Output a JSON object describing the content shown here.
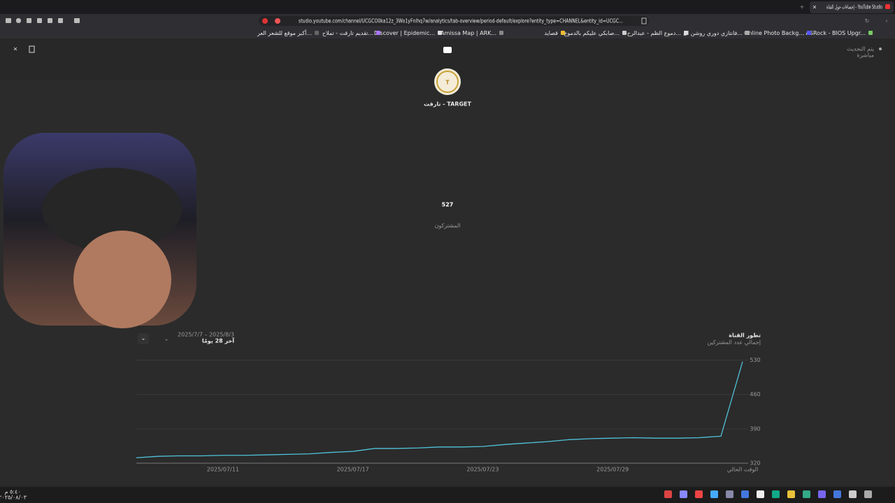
{
  "browser": {
    "tab_title": "إحصاءات حول القناة - YouTube Studio",
    "url": "studio.youtube.com/channel/UCGCO0ka12z_3Wo1yFnlhq7w/analytics/tab-overview/period-default/explore?entity_type=CHANNEL&entity_id=UCGC...",
    "bookmarks": [
      "ASRock - BIOS Upgr...",
      "Online Photo Backg...",
      "فانتازي دوري روشن ال...",
      "دموع الظم - عبدالرح...",
      "صابكي عليكم بالدموع...",
      "قصايد",
      "Amissa Map | ARK...",
      "Discover | Epidemic...",
      "تقديم تارقت - تملاح...",
      "أكبر موقع للشعر العر..."
    ]
  },
  "header": {
    "status": "يتم التحديث",
    "status_sub": "مباشرة"
  },
  "channel": {
    "name": "تارقت - TARGET",
    "subscribers": "527",
    "subscribers_label": "المشتركون"
  },
  "chart_data": {
    "type": "line",
    "title": "تطور القناة",
    "subtitle": "إجمالي عدد المشتركين",
    "period_range": "2025/7/7 – 2025/8/3",
    "period_name": "آخر 28 يومًا",
    "categories": [
      null,
      null,
      null,
      null,
      "2025/07/11",
      null,
      null,
      null,
      null,
      null,
      "2025/07/17",
      null,
      null,
      null,
      null,
      null,
      "2025/07/23",
      null,
      null,
      null,
      null,
      null,
      "2025/07/29",
      null,
      null,
      null,
      null,
      null,
      "الوقت الحالي"
    ],
    "series": [
      {
        "name": "المشتركون",
        "color": "#4fc3d9",
        "values": [
          331,
          334,
          335,
          335,
          336,
          336,
          337,
          338,
          339,
          342,
          344,
          350,
          350,
          351,
          353,
          353,
          354,
          358,
          361,
          364,
          368,
          370,
          371,
          372,
          371,
          371,
          372,
          375,
          527
        ]
      }
    ],
    "ylim": [
      320,
      535
    ],
    "yticks": [
      320,
      390,
      460,
      530
    ],
    "grid": true
  },
  "taskbar": {
    "time": "٥:٤٠ م",
    "date": "٢٠٢٥/٠٨/٠٣"
  }
}
